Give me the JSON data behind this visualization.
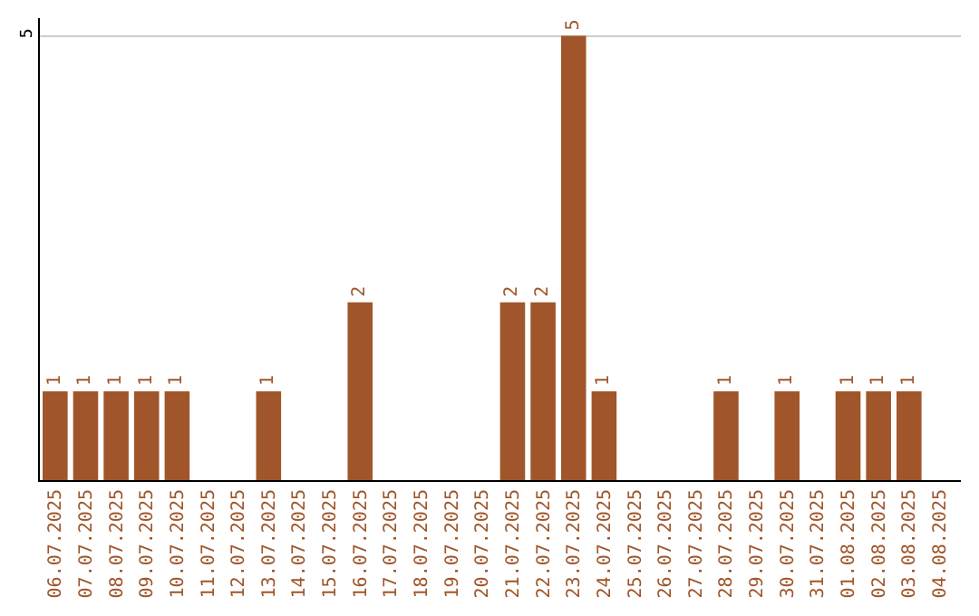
{
  "chart_data": {
    "type": "bar",
    "categories": [
      "06.07.2025",
      "07.07.2025",
      "08.07.2025",
      "09.07.2025",
      "10.07.2025",
      "11.07.2025",
      "12.07.2025",
      "13.07.2025",
      "14.07.2025",
      "15.07.2025",
      "16.07.2025",
      "17.07.2025",
      "18.07.2025",
      "19.07.2025",
      "20.07.2025",
      "21.07.2025",
      "22.07.2025",
      "23.07.2025",
      "24.07.2025",
      "25.07.2025",
      "26.07.2025",
      "27.07.2025",
      "28.07.2025",
      "29.07.2025",
      "30.07.2025",
      "31.07.2025",
      "01.08.2025",
      "02.08.2025",
      "03.08.2025",
      "04.08.2025"
    ],
    "values": [
      1,
      1,
      1,
      1,
      1,
      0,
      0,
      1,
      0,
      0,
      2,
      0,
      0,
      0,
      0,
      2,
      2,
      5,
      1,
      0,
      0,
      0,
      1,
      0,
      1,
      0,
      1,
      1,
      1,
      0
    ],
    "value_labels": [
      "1",
      "1",
      "1",
      "1",
      "1",
      null,
      null,
      "1",
      null,
      null,
      "2",
      null,
      null,
      null,
      null,
      "2",
      "2",
      "5",
      "1",
      null,
      null,
      null,
      "1",
      null,
      "1",
      null,
      "1",
      "1",
      "1",
      null
    ],
    "color": "#a0562a",
    "ylim": [
      0,
      5.2
    ],
    "yticks": [
      5
    ],
    "grid": "y",
    "legend": false
  }
}
